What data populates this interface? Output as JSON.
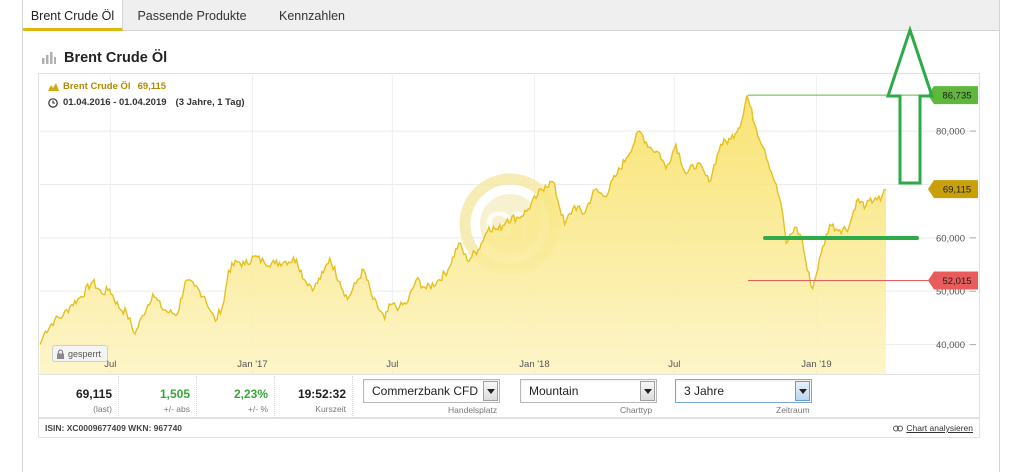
{
  "tabs": [
    {
      "label": "Brent Crude Öl",
      "active": true
    },
    {
      "label": "Passende Produkte",
      "active": false
    },
    {
      "label": "Kennzahlen",
      "active": false
    }
  ],
  "chart_header": {
    "title": "Brent Crude Öl",
    "icon": "bar-chart-icon"
  },
  "legend": {
    "instrument": "Brent Crude Öl",
    "value": "69,115",
    "range": "01.04.2016 - 01.04.2019",
    "range_note": "(3 Jahre, 1 Tag)"
  },
  "locked_label": "gesperrt",
  "quotes": [
    {
      "value": "69,115",
      "label": "(last)",
      "color": "#222222"
    },
    {
      "value": "1,505",
      "label": "+/- abs",
      "color": "#3aa53a"
    },
    {
      "value": "2,23%",
      "label": "+/- %",
      "color": "#3aa53a"
    },
    {
      "value": "19:52:32",
      "label": "Kurszeit",
      "color": "#222222"
    }
  ],
  "selects": [
    {
      "value": "Commerzbank CFD",
      "label": "Handelsplatz"
    },
    {
      "value": "Mountain",
      "label": "Charttyp"
    },
    {
      "value": "3 Jahre",
      "label": "Zeitraum"
    }
  ],
  "footer": {
    "isin_text": "ISIN: XC0009677409 WKN: 967740",
    "analyze_label": "Chart analysieren"
  },
  "colors": {
    "accent": "#e0b70a",
    "line": "#e6c01e",
    "high_marker": "#5fb83b",
    "low_marker": "#e85c5c",
    "current_marker": "#c9a00a",
    "annotation": "#2eaa4a"
  },
  "chart_data": {
    "type": "area",
    "title": "Brent Crude Öl",
    "x_range": [
      "2016-04-01",
      "2019-04-01"
    ],
    "ylim": [
      34.5,
      90.5
    ],
    "y_ticks": [
      {
        "value": 40,
        "label": "40,000"
      },
      {
        "value": 50,
        "label": "50,000"
      },
      {
        "value": 60,
        "label": "60,000"
      },
      {
        "value": 70,
        "label": "70,000"
      },
      {
        "value": 80,
        "label": "80,000"
      }
    ],
    "x_ticks": [
      {
        "date": "2016-07-01",
        "label": "Jul"
      },
      {
        "date": "2017-01-01",
        "label": "Jan '17"
      },
      {
        "date": "2017-07-01",
        "label": "Jul"
      },
      {
        "date": "2018-01-01",
        "label": "Jan '18"
      },
      {
        "date": "2018-07-01",
        "label": "Jul"
      },
      {
        "date": "2019-01-01",
        "label": "Jan '19"
      }
    ],
    "grid": true,
    "series": [
      {
        "points": [
          [
            "2016-04-01",
            40.0
          ],
          [
            "2016-04-08",
            42.5
          ],
          [
            "2016-04-20",
            44.6
          ],
          [
            "2016-05-01",
            45.5
          ],
          [
            "2016-05-12",
            47.5
          ],
          [
            "2016-05-24",
            49.0
          ],
          [
            "2016-06-08",
            51.8
          ],
          [
            "2016-06-20",
            49.6
          ],
          [
            "2016-06-30",
            50.4
          ],
          [
            "2016-07-12",
            47.0
          ],
          [
            "2016-07-22",
            46.0
          ],
          [
            "2016-08-02",
            42.0
          ],
          [
            "2016-08-12",
            45.5
          ],
          [
            "2016-08-25",
            49.5
          ],
          [
            "2016-09-05",
            47.0
          ],
          [
            "2016-09-15",
            46.0
          ],
          [
            "2016-09-26",
            45.8
          ],
          [
            "2016-10-06",
            51.8
          ],
          [
            "2016-10-18",
            51.0
          ],
          [
            "2016-10-31",
            49.0
          ],
          [
            "2016-11-08",
            46.2
          ],
          [
            "2016-11-14",
            44.4
          ],
          [
            "2016-11-25",
            48.0
          ],
          [
            "2016-12-01",
            53.9
          ],
          [
            "2016-12-12",
            55.5
          ],
          [
            "2016-12-22",
            55.0
          ],
          [
            "2017-01-03",
            56.5
          ],
          [
            "2017-01-16",
            55.5
          ],
          [
            "2017-01-30",
            55.2
          ],
          [
            "2017-02-13",
            55.6
          ],
          [
            "2017-02-27",
            56.0
          ],
          [
            "2017-03-09",
            52.2
          ],
          [
            "2017-03-22",
            50.6
          ],
          [
            "2017-04-03",
            53.5
          ],
          [
            "2017-04-11",
            56.2
          ],
          [
            "2017-04-24",
            51.8
          ],
          [
            "2017-05-04",
            48.5
          ],
          [
            "2017-05-15",
            51.5
          ],
          [
            "2017-05-25",
            54.0
          ],
          [
            "2017-06-06",
            48.5
          ],
          [
            "2017-06-21",
            44.8
          ],
          [
            "2017-06-29",
            47.5
          ],
          [
            "2017-07-10",
            47.0
          ],
          [
            "2017-07-21",
            48.0
          ],
          [
            "2017-08-01",
            52.2
          ],
          [
            "2017-08-14",
            50.5
          ],
          [
            "2017-08-28",
            51.8
          ],
          [
            "2017-09-11",
            54.0
          ],
          [
            "2017-09-25",
            59.0
          ],
          [
            "2017-10-06",
            55.8
          ],
          [
            "2017-10-20",
            57.8
          ],
          [
            "2017-11-03",
            62.0
          ],
          [
            "2017-11-15",
            61.5
          ],
          [
            "2017-11-27",
            63.5
          ],
          [
            "2017-12-11",
            63.8
          ],
          [
            "2017-12-22",
            65.0
          ],
          [
            "2018-01-05",
            68.0
          ],
          [
            "2018-01-15",
            69.8
          ],
          [
            "2018-01-25",
            70.5
          ],
          [
            "2018-02-09",
            62.5
          ],
          [
            "2018-02-22",
            66.0
          ],
          [
            "2018-03-06",
            64.5
          ],
          [
            "2018-03-20",
            69.0
          ],
          [
            "2018-04-02",
            67.8
          ],
          [
            "2018-04-16",
            71.5
          ],
          [
            "2018-04-30",
            75.0
          ],
          [
            "2018-05-17",
            80.0
          ],
          [
            "2018-05-30",
            77.0
          ],
          [
            "2018-06-12",
            75.8
          ],
          [
            "2018-06-20",
            73.0
          ],
          [
            "2018-07-03",
            77.5
          ],
          [
            "2018-07-16",
            72.0
          ],
          [
            "2018-07-31",
            74.0
          ],
          [
            "2018-08-15",
            70.5
          ],
          [
            "2018-08-30",
            77.5
          ],
          [
            "2018-09-12",
            78.5
          ],
          [
            "2018-09-26",
            81.8
          ],
          [
            "2018-10-03",
            86.7
          ],
          [
            "2018-10-15",
            80.5
          ],
          [
            "2018-10-26",
            76.5
          ],
          [
            "2018-11-08",
            70.5
          ],
          [
            "2018-11-16",
            66.5
          ],
          [
            "2018-11-23",
            59.0
          ],
          [
            "2018-12-04",
            62.0
          ],
          [
            "2018-12-13",
            60.0
          ],
          [
            "2018-12-20",
            54.0
          ],
          [
            "2018-12-27",
            50.5
          ],
          [
            "2019-01-07",
            57.0
          ],
          [
            "2019-01-18",
            62.5
          ],
          [
            "2019-01-31",
            61.5
          ],
          [
            "2019-02-12",
            62.0
          ],
          [
            "2019-02-22",
            67.0
          ],
          [
            "2019-03-06",
            66.0
          ],
          [
            "2019-03-18",
            67.5
          ],
          [
            "2019-03-25",
            67.0
          ],
          [
            "2019-04-01",
            69.1
          ]
        ]
      }
    ],
    "markers": [
      {
        "label": "86,735",
        "value": 86.735
      },
      {
        "label": "69,115",
        "value": 69.115
      },
      {
        "label": "52,015",
        "value": 52.015
      }
    ],
    "watermark": "GT"
  }
}
